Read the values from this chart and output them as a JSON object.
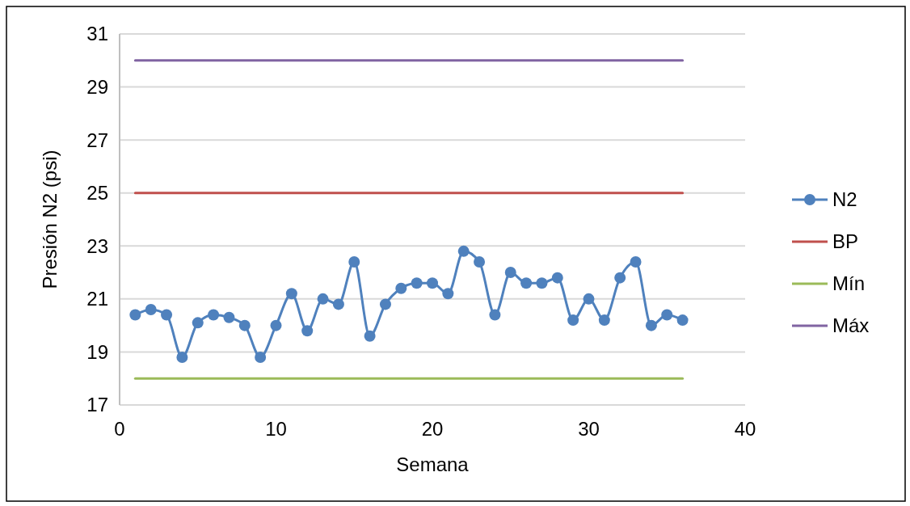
{
  "chart_data": {
    "type": "line",
    "xlabel": "Semana",
    "ylabel": "Presión N2 (psi)",
    "x": [
      1,
      2,
      3,
      4,
      5,
      6,
      7,
      8,
      9,
      10,
      11,
      12,
      13,
      14,
      15,
      16,
      17,
      18,
      19,
      20,
      21,
      22,
      23,
      24,
      25,
      26,
      27,
      28,
      29,
      30,
      31,
      32,
      33,
      34,
      35,
      36
    ],
    "series": [
      {
        "name": "N2",
        "color": "#4f81bd",
        "marker": "circle",
        "values": [
          20.4,
          20.6,
          20.4,
          18.8,
          20.1,
          20.4,
          20.3,
          20.0,
          18.8,
          20.0,
          21.2,
          19.8,
          21.0,
          20.8,
          22.4,
          19.6,
          20.8,
          21.4,
          21.6,
          21.6,
          21.2,
          22.8,
          22.4,
          20.4,
          22.0,
          21.6,
          21.6,
          21.8,
          20.2,
          21.0,
          20.2,
          21.8,
          22.4,
          20.0,
          20.4,
          20.2
        ]
      },
      {
        "name": "BP",
        "color": "#c0504d",
        "marker": "none",
        "values": [
          25,
          25,
          25,
          25,
          25,
          25,
          25,
          25,
          25,
          25,
          25,
          25,
          25,
          25,
          25,
          25,
          25,
          25,
          25,
          25,
          25,
          25,
          25,
          25,
          25,
          25,
          25,
          25,
          25,
          25,
          25,
          25,
          25,
          25,
          25,
          25
        ]
      },
      {
        "name": "Mín",
        "color": "#9bbb59",
        "marker": "none",
        "values": [
          18,
          18,
          18,
          18,
          18,
          18,
          18,
          18,
          18,
          18,
          18,
          18,
          18,
          18,
          18,
          18,
          18,
          18,
          18,
          18,
          18,
          18,
          18,
          18,
          18,
          18,
          18,
          18,
          18,
          18,
          18,
          18,
          18,
          18,
          18,
          18
        ]
      },
      {
        "name": "Máx",
        "color": "#8064a2",
        "marker": "none",
        "values": [
          30,
          30,
          30,
          30,
          30,
          30,
          30,
          30,
          30,
          30,
          30,
          30,
          30,
          30,
          30,
          30,
          30,
          30,
          30,
          30,
          30,
          30,
          30,
          30,
          30,
          30,
          30,
          30,
          30,
          30,
          30,
          30,
          30,
          30,
          30,
          30
        ]
      }
    ],
    "xlim": [
      0,
      40
    ],
    "xticks": [
      0,
      10,
      20,
      30,
      40
    ],
    "ylim": [
      17,
      31
    ],
    "yticks": [
      17,
      19,
      21,
      23,
      25,
      27,
      29,
      31
    ],
    "grid": "y",
    "legend": "right"
  }
}
